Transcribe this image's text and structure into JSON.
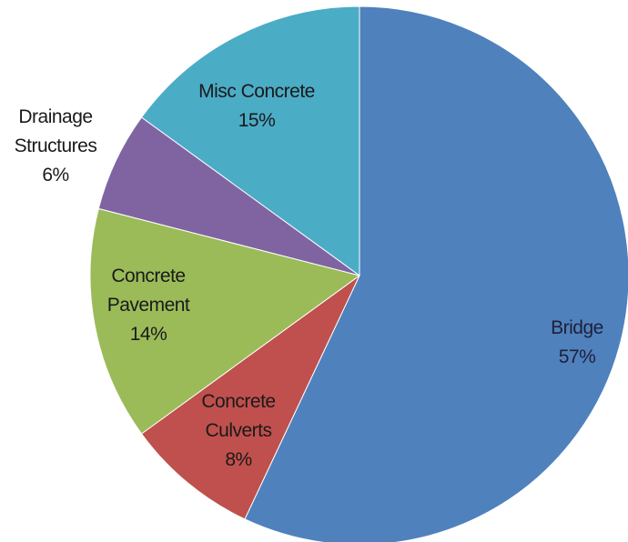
{
  "chart_data": {
    "type": "pie",
    "title": "",
    "legend": "none",
    "slices": [
      {
        "name": "bridge",
        "label_lines": [
          "Bridge"
        ],
        "pct_label": "57%",
        "value": 57,
        "color": "#4f81bd",
        "label_color": "#1f1f3a"
      },
      {
        "name": "concrete-culverts",
        "label_lines": [
          "Concrete",
          "Culverts"
        ],
        "pct_label": "8%",
        "value": 8,
        "color": "#c0504d",
        "label_color": "#1a1a1a"
      },
      {
        "name": "concrete-pavement",
        "label_lines": [
          "Concrete",
          "Pavement"
        ],
        "pct_label": "14%",
        "value": 14,
        "color": "#9bbb59",
        "label_color": "#1a1a1a"
      },
      {
        "name": "drainage-structures",
        "label_lines": [
          "Drainage",
          "Structures"
        ],
        "pct_label": "6%",
        "value": 6,
        "color": "#8064a2",
        "label_color": "#1a1a1a"
      },
      {
        "name": "misc-concrete",
        "label_lines": [
          "Misc Concrete"
        ],
        "pct_label": "15%",
        "value": 15,
        "color": "#4bacc6",
        "label_color": "#1a1a1a"
      }
    ]
  }
}
